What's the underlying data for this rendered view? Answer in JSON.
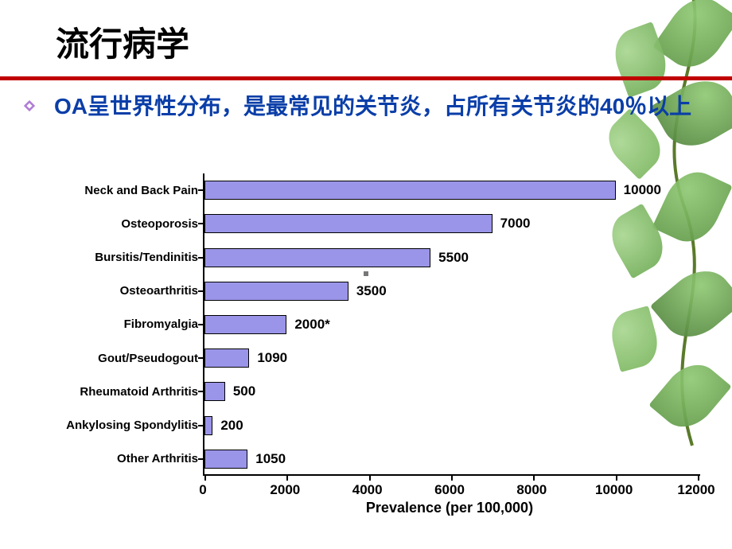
{
  "title": {
    "text": "流行病学",
    "fontsize": 42,
    "color": "#000000"
  },
  "accent_color": "#c00000",
  "bullet": {
    "diamond_color_outer": "#b07bd6",
    "diamond_color_inner": "#ffffff",
    "text": "OA呈世界性分布，是最常见的关节炎，占所有关节炎的40％以上",
    "fontsize": 28,
    "color": "#0a3ea8"
  },
  "chart": {
    "type": "bar-horizontal",
    "categories": [
      "Neck and Back Pain",
      "Osteoporosis",
      "Bursitis/Tendinitis",
      "Osteoarthritis",
      "Fibromyalgia",
      "Gout/Pseudogout",
      "Rheumatoid Arthritis",
      "Ankylosing Spondylitis",
      "Other Arthritis"
    ],
    "values": [
      10000,
      7000,
      5500,
      3500,
      2000,
      1090,
      500,
      200,
      1050
    ],
    "value_labels": [
      "10000",
      "7000",
      "5500",
      "3500",
      "2000*",
      "1090",
      "500",
      "200",
      "1050"
    ],
    "bar_color": "#9a95e8",
    "bar_border": "#000000",
    "xaxis_title": "Prevalence (per 100,000)",
    "xlim": [
      0,
      12000
    ],
    "xtick_step": 2000,
    "xticks": [
      0,
      2000,
      4000,
      6000,
      8000,
      10000,
      12000
    ],
    "label_fontsize": 15,
    "value_fontsize": 17,
    "tick_fontsize": 17,
    "axis_title_fontsize": 18,
    "axis_color": "#000000",
    "background_color": "#ffffff"
  },
  "leaves": {
    "vine_color": "#5a7a2a",
    "leaf_colors": [
      "#5d9644",
      "#77b35a",
      "#8fc873",
      "#4d8038",
      "#6aa850"
    ]
  }
}
